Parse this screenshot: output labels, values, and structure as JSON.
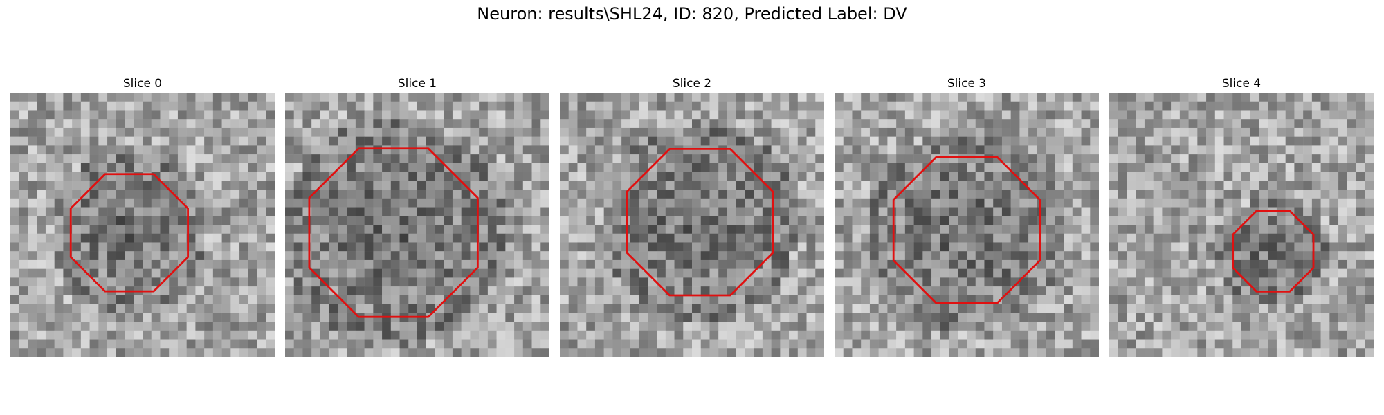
{
  "title": "Neuron: results\\SHL24, ID: 820, Predicted Label: DV",
  "panels": [
    {
      "label": "Slice 0",
      "center": [
        0.45,
        0.53
      ],
      "radius": 0.24,
      "bg_seed": 11
    },
    {
      "label": "Slice 1",
      "center": [
        0.41,
        0.53
      ],
      "radius": 0.345,
      "bg_seed": 23
    },
    {
      "label": "Slice 2",
      "center": [
        0.53,
        0.49
      ],
      "radius": 0.3,
      "bg_seed": 37
    },
    {
      "label": "Slice 3",
      "center": [
        0.5,
        0.52
      ],
      "radius": 0.3,
      "bg_seed": 41
    },
    {
      "label": "Slice 4",
      "center": [
        0.62,
        0.6
      ],
      "radius": 0.165,
      "bg_seed": 53
    }
  ],
  "contour_color": "#e01010"
}
